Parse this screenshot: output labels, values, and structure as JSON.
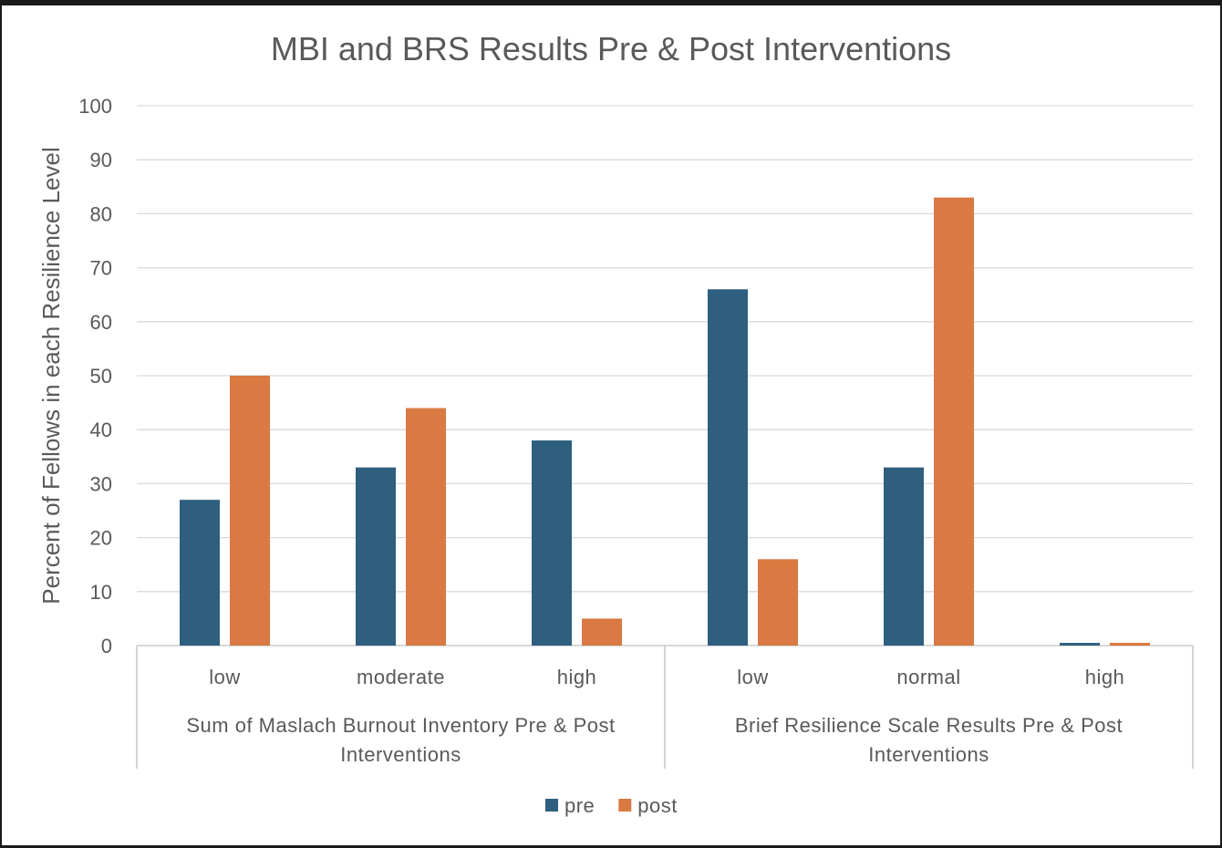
{
  "chart_data": {
    "type": "bar",
    "title": "MBI and BRS Results Pre & Post Interventions",
    "ylabel": "Percent of Fellows in each Resilience Level",
    "xlabel": "",
    "ylim": [
      0,
      100
    ],
    "yticks": [
      0,
      10,
      20,
      30,
      40,
      50,
      60,
      70,
      80,
      90,
      100
    ],
    "grid": true,
    "legend_position": "bottom",
    "groups": [
      {
        "label": [
          "Sum of Maslach Burnout Inventory Pre & Post",
          "Interventions"
        ],
        "categories": [
          "low",
          "moderate",
          "high"
        ]
      },
      {
        "label": [
          "Brief Resilience Scale Results Pre & Post",
          "Interventions"
        ],
        "categories": [
          "low",
          "normal",
          "high"
        ]
      }
    ],
    "categories": [
      "low",
      "moderate",
      "high",
      "low",
      "normal",
      "high"
    ],
    "series": [
      {
        "name": "pre",
        "color": "#2e5f7f",
        "values": [
          27,
          33,
          38,
          66,
          33,
          0.5
        ]
      },
      {
        "name": "post",
        "color": "#d97a42",
        "values": [
          50,
          44,
          5,
          16,
          83,
          0.5
        ]
      }
    ]
  }
}
